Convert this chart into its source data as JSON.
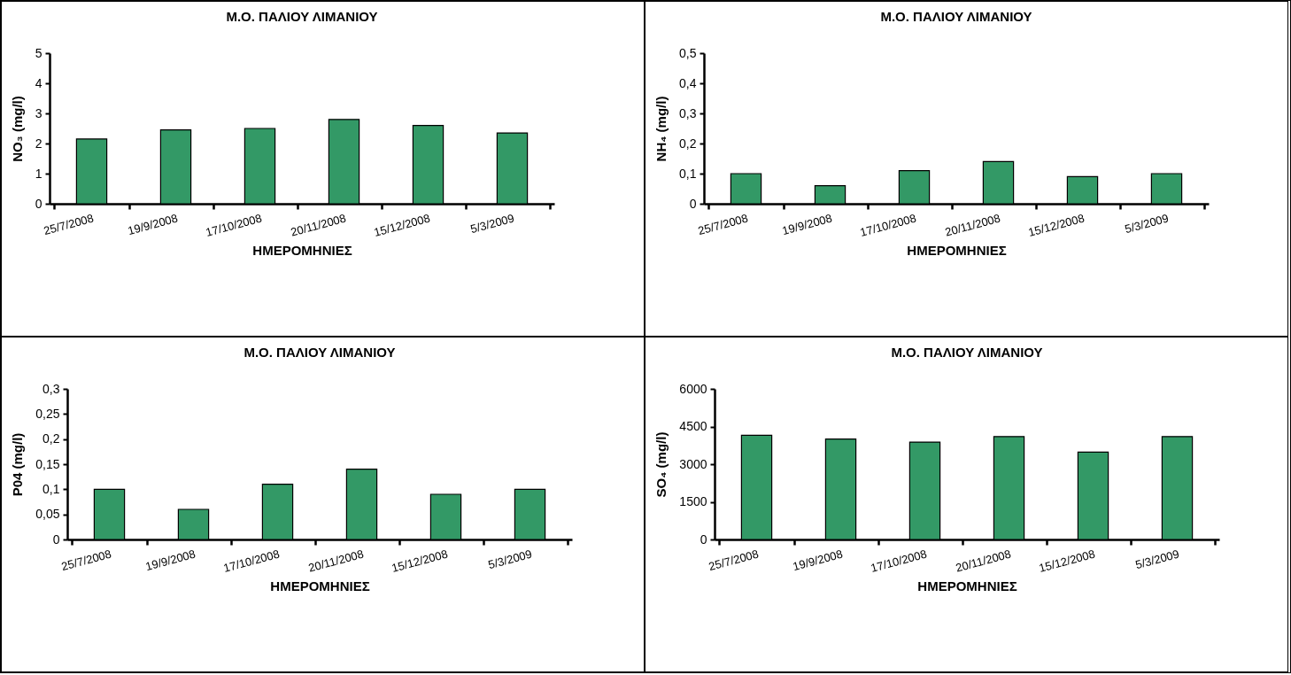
{
  "chart_data": [
    {
      "type": "bar",
      "title": "Μ.Ο. ΠΑΛΙΟΥ ΛΙΜΑΝΙΟΥ",
      "xlabel": "ΗΜΕΡΟΜΗΝΙΕΣ",
      "ylabel": "NO₃ (mg/l)",
      "categories": [
        "25/7/2008",
        "19/9/2008",
        "17/10/2008",
        "20/11/2008",
        "15/12/2008",
        "5/3/2009"
      ],
      "values": [
        2.15,
        2.45,
        2.5,
        2.8,
        2.6,
        2.35
      ],
      "color": "#339966",
      "ylim": [
        0,
        5
      ],
      "yticks": [
        0,
        1,
        2,
        3,
        4,
        5
      ],
      "grid": false
    },
    {
      "type": "bar",
      "title": "Μ.Ο. ΠΑΛΙΟΥ ΛΙΜΑΝΙΟΥ",
      "xlabel": "ΗΜΕΡΟΜΗΝΙΕΣ",
      "ylabel": "NH₄ (mg/l)",
      "categories": [
        "25/7/2008",
        "19/9/2008",
        "17/10/2008",
        "20/11/2008",
        "15/12/2008",
        "5/3/2009"
      ],
      "values": [
        0.1,
        0.06,
        0.11,
        0.14,
        0.09,
        0.1
      ],
      "color": "#339966",
      "ylim": [
        0,
        0.5
      ],
      "yticks": [
        0,
        {
          "value": 0.1,
          "label": "0,1"
        },
        {
          "value": 0.2,
          "label": "0,2"
        },
        {
          "value": 0.3,
          "label": "0,3"
        },
        {
          "value": 0.4,
          "label": "0,4"
        },
        {
          "value": 0.5,
          "label": "0,5"
        }
      ],
      "grid": false
    },
    {
      "type": "bar",
      "title": "Μ.Ο. ΠΑΛΙΟΥ ΛΙΜΑΝΙΟΥ",
      "xlabel": "ΗΜΕΡΟΜΗΝΙΕΣ",
      "ylabel": "P04 (mg/l)",
      "categories": [
        "25/7/2008",
        "19/9/2008",
        "17/10/2008",
        "20/11/2008",
        "15/12/2008",
        "5/3/2009"
      ],
      "values": [
        0.1,
        0.06,
        0.11,
        0.14,
        0.09,
        0.1
      ],
      "color": "#339966",
      "ylim": [
        0,
        0.3
      ],
      "yticks": [
        0,
        {
          "value": 0.05,
          "label": "0,05"
        },
        {
          "value": 0.1,
          "label": "0,1"
        },
        {
          "value": 0.15,
          "label": "0,15"
        },
        {
          "value": 0.2,
          "label": "0,2"
        },
        {
          "value": 0.25,
          "label": "0,25"
        },
        {
          "value": 0.3,
          "label": "0,3"
        }
      ],
      "grid": false
    },
    {
      "type": "bar",
      "title": "Μ.Ο. ΠΑΛΙΟΥ ΛΙΜΑΝΙΟΥ",
      "xlabel": "ΗΜΕΡΟΜΗΝΙΕΣ",
      "ylabel": "SO₄ (mg/l)",
      "categories": [
        "25/7/2008",
        "19/9/2008",
        "17/10/2008",
        "20/11/2008",
        "15/12/2008",
        "5/3/2009"
      ],
      "values": [
        4150,
        4000,
        3880,
        4100,
        3480,
        4100
      ],
      "color": "#339966",
      "ylim": [
        0,
        6000
      ],
      "yticks": [
        0,
        1500,
        3000,
        4500,
        6000
      ],
      "grid": false
    }
  ]
}
